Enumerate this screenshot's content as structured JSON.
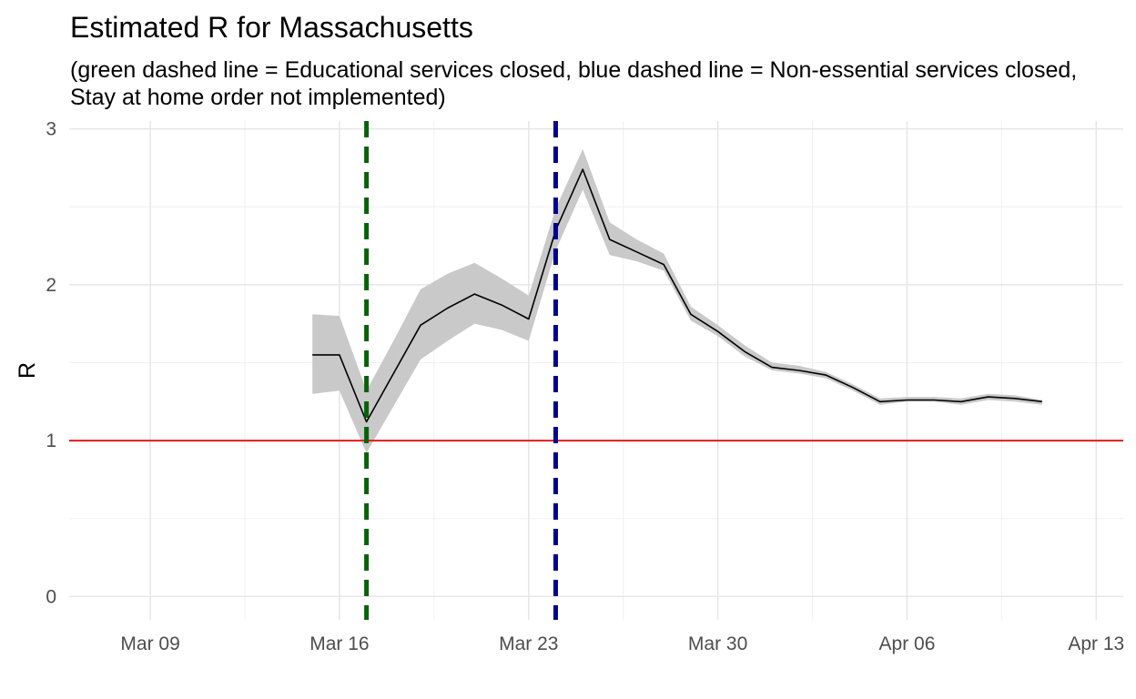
{
  "chart_data": {
    "type": "line",
    "title": "Estimated R for Massachusetts",
    "subtitle_lines": [
      "(green dashed line = Educational services closed, blue dashed line = Non-essential services closed,",
      "Stay at home order not implemented)"
    ],
    "xlabel": "",
    "ylabel": "R",
    "x_ticks": [
      "2020-03-09",
      "2020-03-16",
      "2020-03-23",
      "2020-03-30",
      "2020-04-06",
      "2020-04-13"
    ],
    "x_tick_labels": [
      "Mar 09",
      "Mar 16",
      "Mar 23",
      "Mar 30",
      "Apr 06",
      "Apr 13"
    ],
    "xlim": [
      "2020-03-06",
      "2020-04-14"
    ],
    "y_ticks": [
      0,
      1,
      2,
      3
    ],
    "ylim": [
      -0.15,
      3.05
    ],
    "grid": true,
    "series": [
      {
        "color": "#000000",
        "x": [
          "2020-03-15",
          "2020-03-16",
          "2020-03-17",
          "2020-03-18",
          "2020-03-19",
          "2020-03-20",
          "2020-03-21",
          "2020-03-22",
          "2020-03-23",
          "2020-03-24",
          "2020-03-25",
          "2020-03-26",
          "2020-03-27",
          "2020-03-28",
          "2020-03-29",
          "2020-03-30",
          "2020-03-31",
          "2020-04-01",
          "2020-04-02",
          "2020-04-03",
          "2020-04-04",
          "2020-04-05",
          "2020-04-06",
          "2020-04-07",
          "2020-04-08",
          "2020-04-09",
          "2020-04-10",
          "2020-04-11"
        ],
        "y": [
          1.55,
          1.55,
          1.12,
          1.43,
          1.74,
          1.85,
          1.94,
          1.87,
          1.78,
          2.35,
          2.74,
          2.29,
          2.21,
          2.13,
          1.81,
          1.7,
          1.57,
          1.47,
          1.45,
          1.42,
          1.34,
          1.25,
          1.26,
          1.26,
          1.25,
          1.28,
          1.27,
          1.25
        ],
        "lower": [
          1.3,
          1.32,
          0.92,
          1.22,
          1.52,
          1.64,
          1.75,
          1.71,
          1.64,
          2.22,
          2.61,
          2.19,
          2.15,
          2.09,
          1.77,
          1.67,
          1.54,
          1.45,
          1.43,
          1.4,
          1.32,
          1.23,
          1.25,
          1.25,
          1.23,
          1.26,
          1.25,
          1.23
        ],
        "upper": [
          1.81,
          1.8,
          1.32,
          1.64,
          1.97,
          2.07,
          2.14,
          2.04,
          1.93,
          2.49,
          2.87,
          2.4,
          2.29,
          2.2,
          1.86,
          1.74,
          1.61,
          1.5,
          1.48,
          1.44,
          1.36,
          1.27,
          1.28,
          1.28,
          1.27,
          1.3,
          1.29,
          1.26
        ]
      }
    ],
    "band_color": "#c9c9c9",
    "reference_lines": [
      {
        "axis": "y",
        "value": 1,
        "color": "#e31a1c",
        "style": "solid"
      },
      {
        "axis": "x",
        "value": "2020-03-17",
        "color": "#006400",
        "style": "dashed"
      },
      {
        "axis": "x",
        "value": "2020-03-24",
        "color": "#00008b",
        "style": "dashed"
      }
    ]
  }
}
